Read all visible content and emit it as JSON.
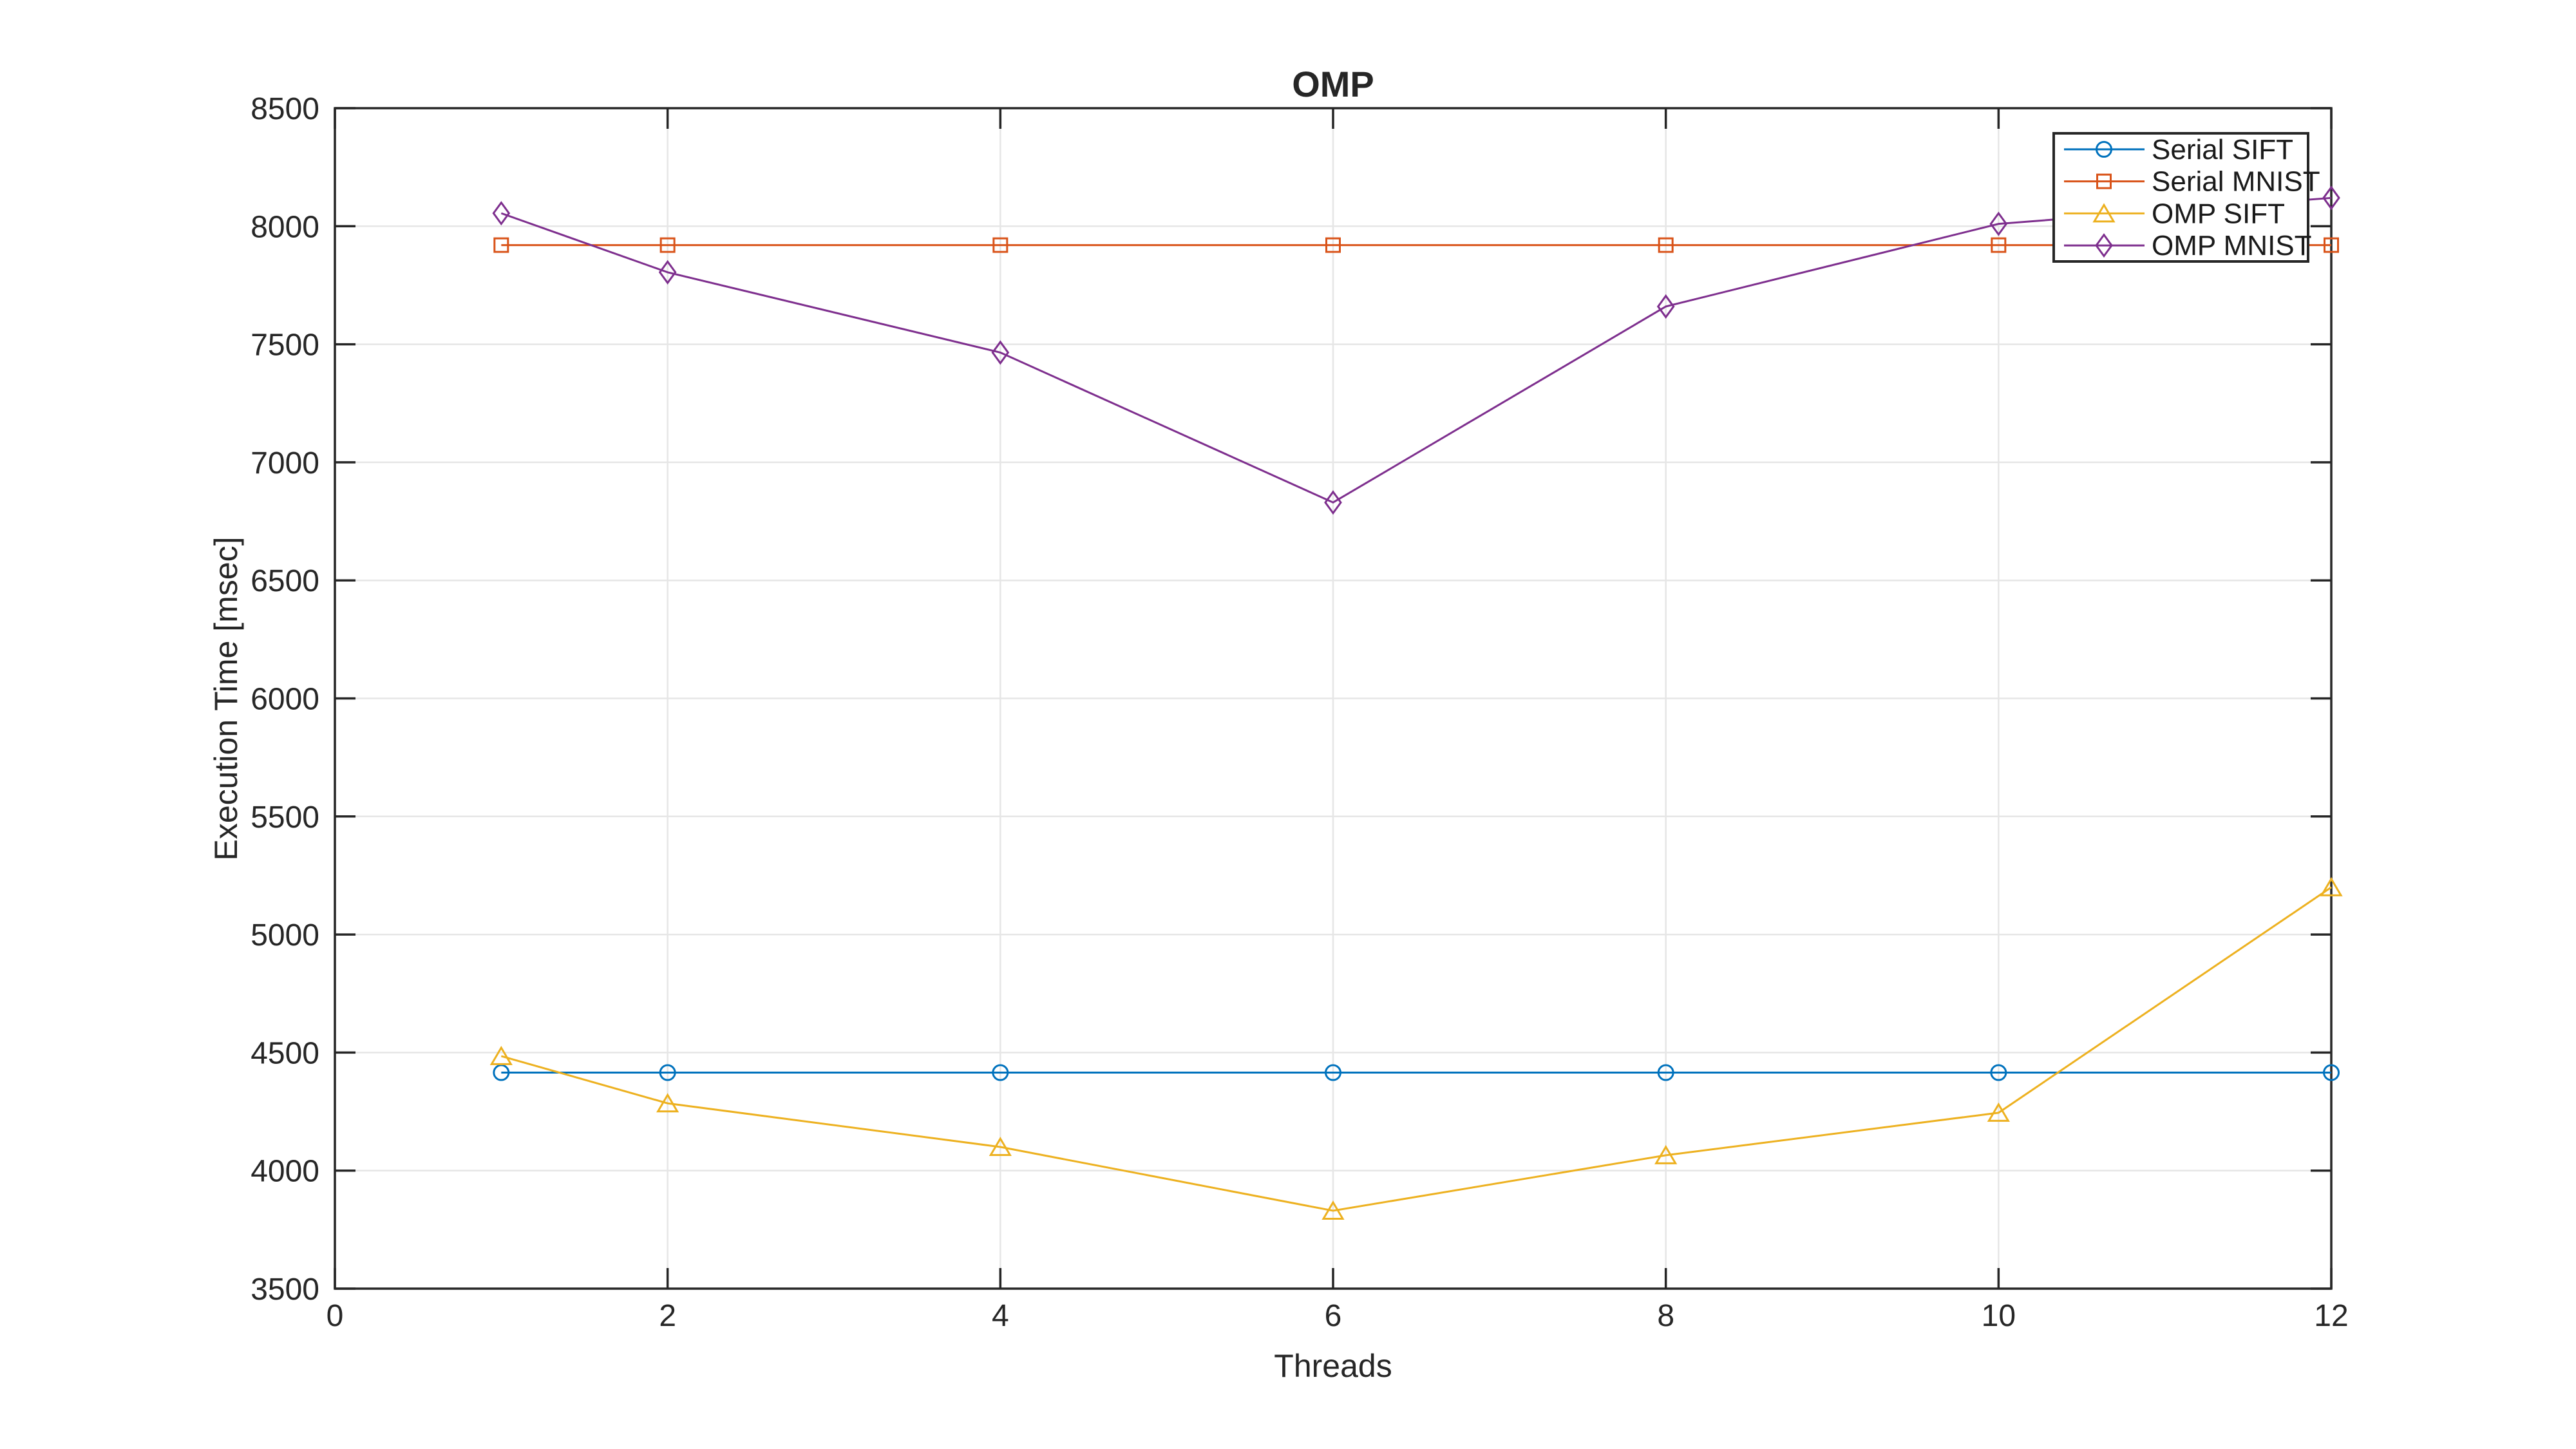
{
  "chart_data": {
    "type": "line",
    "title": "OMP",
    "xlabel": "Threads",
    "ylabel": "Execution Time [msec]",
    "x": [
      1,
      2,
      4,
      6,
      8,
      10,
      12
    ],
    "xlim": [
      0,
      12
    ],
    "ylim": [
      3500,
      8500
    ],
    "xticks": [
      0,
      2,
      4,
      6,
      8,
      10,
      12
    ],
    "yticks": [
      3500,
      4000,
      4500,
      5000,
      5500,
      6000,
      6500,
      7000,
      7500,
      8000,
      8500
    ],
    "grid": true,
    "legend_position": "top-right",
    "series": [
      {
        "name": "Serial SIFT",
        "color": "#0072BD",
        "marker": "circle",
        "values": [
          4415,
          4415,
          4415,
          4415,
          4415,
          4415,
          4415
        ]
      },
      {
        "name": "Serial MNIST",
        "color": "#D95319",
        "marker": "square",
        "values": [
          7920,
          7920,
          7920,
          7920,
          7920,
          7920,
          7920
        ]
      },
      {
        "name": "OMP SIFT",
        "color": "#EDB120",
        "marker": "triangle",
        "values": [
          4485,
          4285,
          4100,
          3830,
          4065,
          4245,
          5200
        ]
      },
      {
        "name": "OMP MNIST",
        "color": "#7E2F8E",
        "marker": "diamond",
        "values": [
          8055,
          7805,
          7465,
          6830,
          7660,
          8010,
          8120
        ]
      }
    ]
  },
  "colors": {
    "axis": "#262626",
    "grid": "#e6e6e6",
    "background": "#ffffff",
    "legend_border": "#262626"
  }
}
